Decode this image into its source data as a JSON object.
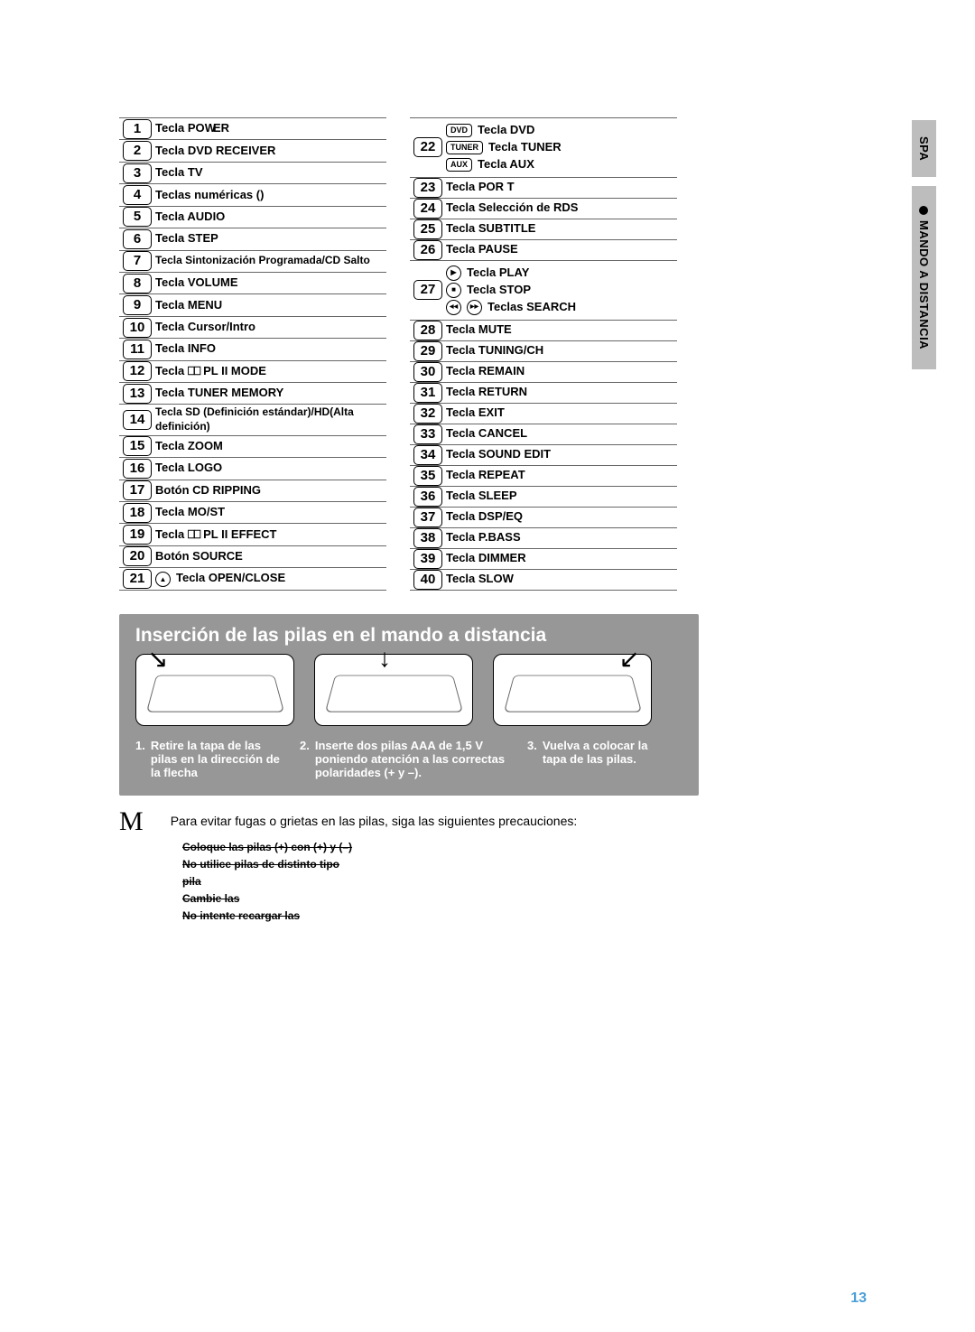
{
  "side_tabs": {
    "tab1": "SPA",
    "tab2": "MANDO A DISTANCIA"
  },
  "left_col": [
    {
      "n": "1",
      "label": "Tecla POWER",
      "simple": true,
      "render": "power"
    },
    {
      "n": "2",
      "label": "Tecla DVD RECEIVER",
      "simple": true
    },
    {
      "n": "3",
      "label": "Tecla  TV",
      "simple": true
    },
    {
      "n": "4",
      "label": "Teclas numéricas ()",
      "simple": true
    },
    {
      "n": "5",
      "label": "Tecla  AUDIO",
      "simple": true
    },
    {
      "n": "6",
      "label": "Tecla  STEP",
      "simple": true
    },
    {
      "n": "7",
      "label": "Tecla Sintonización Programada/CD Salto",
      "simple": true,
      "small": true
    },
    {
      "n": "8",
      "label": "Tecla  VOLUME",
      "simple": true
    },
    {
      "n": "9",
      "label": "Tecla  MENU",
      "simple": true
    },
    {
      "n": "10",
      "label": "Tecla Cursor/Intro",
      "simple": true
    },
    {
      "n": "11",
      "label": "Tecla INFO",
      "simple": true
    },
    {
      "n": "12",
      "label": "Tecla  ⎕⎕ PL II MODE",
      "simple": true,
      "dolby": true,
      "dolby_after": "PL II MODE"
    },
    {
      "n": "13",
      "label": "Tecla TUNER MEMORY",
      "simple": true
    },
    {
      "n": "14",
      "label": "Tecla SD (Definición estándar)/HD(Alta definición)",
      "simple": true,
      "small": true
    },
    {
      "n": "15",
      "label": "Tecla  ZOOM",
      "simple": true
    },
    {
      "n": "16",
      "label": "Tecla LOGO",
      "simple": true
    },
    {
      "n": "17",
      "label": "Botón CD RIPPING",
      "simple": true
    },
    {
      "n": "18",
      "label": "  Tecla   MO/ST",
      "simple": true
    },
    {
      "n": "19",
      "label": "Tecla  ⎕⎕ PL II EFFECT",
      "simple": true,
      "dolby": true,
      "dolby_after": "PL II EFFECT"
    },
    {
      "n": "20",
      "label": "  Botón SOURCE",
      "simple": true
    },
    {
      "n": "21",
      "label": "Tecla  OPEN/CLOSE",
      "simple": true,
      "eject": true
    }
  ],
  "right_col": [
    {
      "n": "22",
      "multi": true,
      "lines": [
        {
          "frame": "DVD",
          "text": "Tecla  DVD"
        },
        {
          "frame": "TUNER",
          "text": "Tecla  TUNER"
        },
        {
          "frame": "AUX",
          "text": "Tecla  AUX"
        }
      ]
    },
    {
      "n": "23",
      "label": "Tecla  POR T",
      "simple": true
    },
    {
      "n": "24",
      "label": "Tecla Selección de RDS",
      "simple": true
    },
    {
      "n": "25",
      "label": "Tecla SUBTITLE",
      "simple": true
    },
    {
      "n": "26",
      "label": "Tecla  PAUSE",
      "simple": true
    },
    {
      "n": "27",
      "multi": true,
      "lines": [
        {
          "circle": "▶",
          "text": "Tecla  PLAY"
        },
        {
          "circle": "■",
          "text": "Tecla  STOP"
        },
        {
          "dcircle": [
            "◀◀",
            "▶▶"
          ],
          "text": "Teclas  SEARCH"
        }
      ]
    },
    {
      "n": "28",
      "label": "Tecla MUTE",
      "simple": true
    },
    {
      "n": "29",
      "label": "Tecla TUNING/CH",
      "simple": true
    },
    {
      "n": "30",
      "label": "Tecla  REMAIN",
      "simple": true
    },
    {
      "n": "31",
      "label": "Tecla RETURN",
      "simple": true
    },
    {
      "n": "32",
      "label": "Tecla EXIT",
      "simple": true
    },
    {
      "n": "33",
      "label": "Tecla  CANCEL",
      "simple": true
    },
    {
      "n": "34",
      "label": "Tecla SOUND EDIT",
      "simple": true
    },
    {
      "n": "35",
      "label": "Tecla REPEAT",
      "simple": true
    },
    {
      "n": "36",
      "label": "Tecla  SLEEP",
      "simple": true
    },
    {
      "n": "37",
      "label": "Tecla  DSP/EQ",
      "simple": true
    },
    {
      "n": "38",
      "label": "Tecla  P.BASS",
      "simple": true
    },
    {
      "n": "39",
      "label": "Tecla DIMMER",
      "simple": true
    },
    {
      "n": "40",
      "label": "Tecla SLOW",
      "simple": true
    }
  ],
  "insertion": {
    "title": "Inserción de las pilas en el mando a distancia",
    "steps": [
      {
        "n": "1.",
        "text": "Retire la tapa de las pilas en la dirección de la flecha"
      },
      {
        "n": "2.",
        "text": "Inserte dos pilas AAA de 1,5 V poniendo atención a las correctas polaridades (+ y –)."
      },
      {
        "n": "3.",
        "text": "Vuelva a colocar la tapa de las pilas."
      }
    ]
  },
  "note": {
    "symbol": "M",
    "lead": "Para evitar fugas o grietas en las pilas, siga las siguientes precauciones:",
    "struck": [
      "Coloque las pilas (+) con (+) y (–)",
      "No utilice pilas de distinto tipo",
      "pila",
      "Cambie las",
      "No intente recargar las"
    ]
  },
  "page_number": "13",
  "colors": {
    "tab_bg": "#bdbdbd",
    "box_bg": "#979797",
    "page_num": "#4ca0d8"
  }
}
